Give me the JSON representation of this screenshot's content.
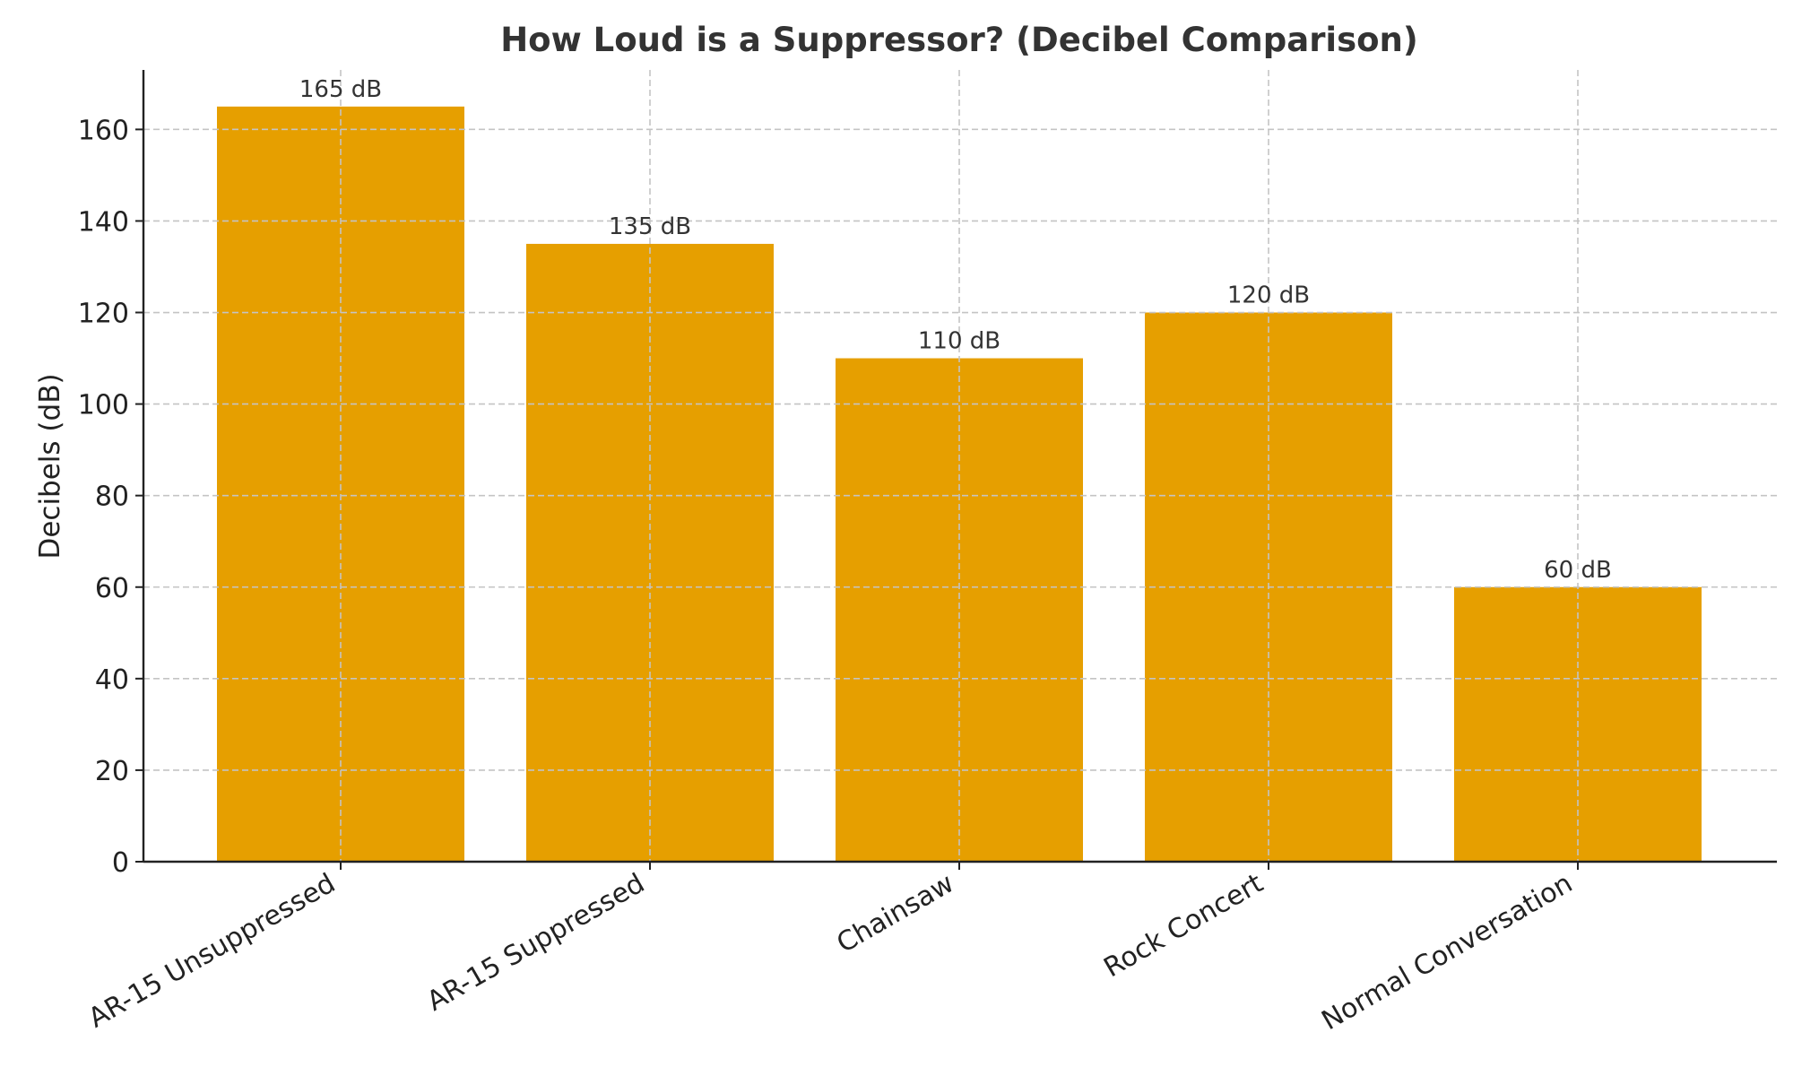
{
  "chart_data": {
    "type": "bar",
    "title": "How Loud is a Suppressor? (Decibel Comparison)",
    "xlabel": "",
    "ylabel": "Decibels (dB)",
    "categories": [
      "AR-15 Unsuppressed",
      "AR-15 Suppressed",
      "Chainsaw",
      "Rock Concert",
      "Normal Conversation"
    ],
    "values": [
      165,
      135,
      110,
      120,
      60
    ],
    "data_labels": [
      "165 dB",
      "135 dB",
      "110 dB",
      "120 dB",
      "60 dB"
    ],
    "yticks": [
      0,
      20,
      40,
      60,
      80,
      100,
      120,
      140,
      160
    ],
    "ytick_labels": [
      "0",
      "20",
      "40",
      "60",
      "80",
      "100",
      "120",
      "140",
      "160"
    ],
    "ylim": [
      0,
      173
    ],
    "grid": true,
    "legend": "none",
    "bar_color": "#e69f00"
  }
}
